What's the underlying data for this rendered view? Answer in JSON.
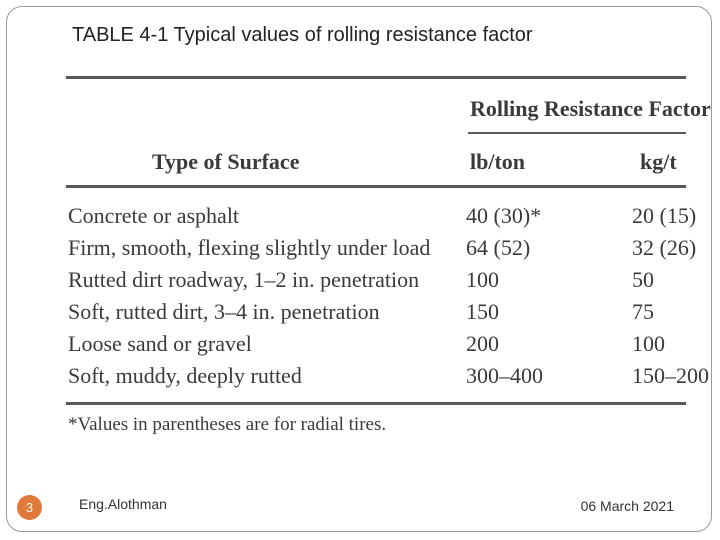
{
  "slide": {
    "title": "TABLE 4-1 Typical values of rolling resistance factor",
    "number": "3",
    "author": "Eng.Alothman",
    "date": "06 March 2021"
  },
  "table": {
    "group_header": "Rolling Resistance Factor",
    "columns": [
      "Type of Surface",
      "lb/ton",
      "kg/t"
    ],
    "rows": [
      {
        "surface": "Concrete or asphalt",
        "lb_ton": "40 (30)*",
        "kg_t": "20 (15)"
      },
      {
        "surface": "Firm, smooth, flexing slightly under load",
        "lb_ton": "64 (52)",
        "kg_t": "32 (26)"
      },
      {
        "surface": "Rutted dirt roadway, 1–2 in. penetration",
        "lb_ton": "100",
        "kg_t": "50"
      },
      {
        "surface": "Soft, rutted dirt, 3–4 in. penetration",
        "lb_ton": "150",
        "kg_t": "75"
      },
      {
        "surface": "Loose sand or gravel",
        "lb_ton": "200",
        "kg_t": "100"
      },
      {
        "surface": "Soft, muddy, deeply rutted",
        "lb_ton": "300–400",
        "kg_t": "150–200"
      }
    ],
    "footnote": "*Values in parentheses are for radial tires."
  }
}
